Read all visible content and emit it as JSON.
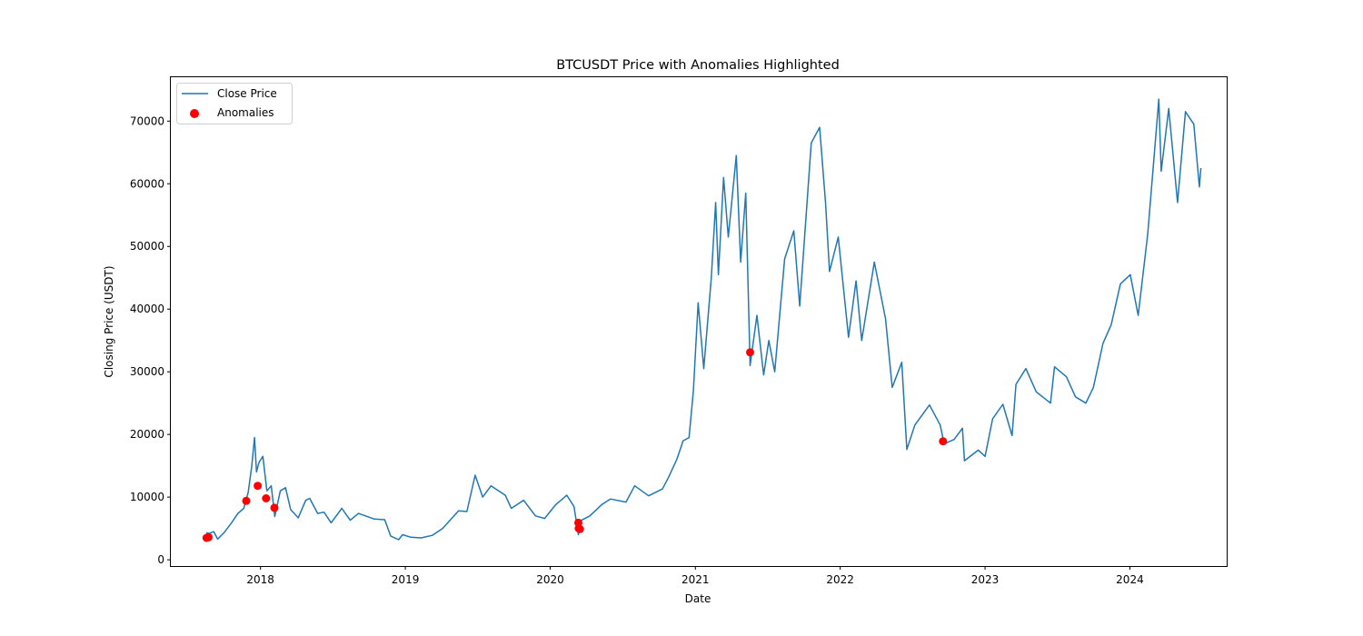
{
  "chart_data": {
    "type": "line",
    "title": "BTCUSDT Price with Anomalies Highlighted",
    "xlabel": "Date",
    "ylabel": "Closing Price (USDT)",
    "xlim": [
      "2017-05-20",
      "2024-09-01"
    ],
    "ylim": [
      -1000,
      77000
    ],
    "x_ticks": [
      "2018",
      "2019",
      "2020",
      "2021",
      "2022",
      "2023",
      "2024"
    ],
    "x_tick_dates": [
      "2018-01-01",
      "2019-01-01",
      "2020-01-01",
      "2021-01-01",
      "2022-01-01",
      "2023-01-01",
      "2024-01-01"
    ],
    "y_ticks": [
      0,
      10000,
      20000,
      30000,
      40000,
      50000,
      60000,
      70000
    ],
    "y_tick_labels": [
      "0",
      "10000",
      "20000",
      "30000",
      "40000",
      "50000",
      "60000",
      "70000"
    ],
    "grid": false,
    "legend_position": "top-left",
    "series": [
      {
        "name": "Close Price",
        "color": "#1f77b4",
        "points": [
          [
            "2017-08-17",
            4300
          ],
          [
            "2017-08-25",
            4200
          ],
          [
            "2017-09-05",
            4500
          ],
          [
            "2017-09-15",
            3300
          ],
          [
            "2017-10-01",
            4300
          ],
          [
            "2017-10-20",
            5900
          ],
          [
            "2017-11-05",
            7400
          ],
          [
            "2017-11-20",
            8200
          ],
          [
            "2017-12-01",
            10800
          ],
          [
            "2017-12-10",
            15000
          ],
          [
            "2017-12-17",
            19500
          ],
          [
            "2017-12-22",
            14000
          ],
          [
            "2017-12-28",
            15500
          ],
          [
            "2018-01-07",
            16500
          ],
          [
            "2018-01-17",
            11000
          ],
          [
            "2018-01-28",
            11800
          ],
          [
            "2018-02-06",
            6900
          ],
          [
            "2018-02-20",
            11000
          ],
          [
            "2018-03-05",
            11500
          ],
          [
            "2018-03-18",
            8000
          ],
          [
            "2018-04-06",
            6700
          ],
          [
            "2018-04-25",
            9500
          ],
          [
            "2018-05-05",
            9800
          ],
          [
            "2018-05-25",
            7400
          ],
          [
            "2018-06-10",
            7600
          ],
          [
            "2018-06-28",
            5900
          ],
          [
            "2018-07-25",
            8200
          ],
          [
            "2018-08-15",
            6300
          ],
          [
            "2018-09-05",
            7400
          ],
          [
            "2018-10-15",
            6500
          ],
          [
            "2018-11-10",
            6400
          ],
          [
            "2018-11-25",
            3800
          ],
          [
            "2018-12-15",
            3200
          ],
          [
            "2018-12-25",
            4000
          ],
          [
            "2019-01-15",
            3600
          ],
          [
            "2019-02-10",
            3500
          ],
          [
            "2019-03-10",
            3900
          ],
          [
            "2019-04-05",
            5000
          ],
          [
            "2019-05-15",
            7800
          ],
          [
            "2019-06-05",
            7700
          ],
          [
            "2019-06-26",
            13500
          ],
          [
            "2019-07-15",
            10000
          ],
          [
            "2019-08-05",
            11800
          ],
          [
            "2019-09-10",
            10300
          ],
          [
            "2019-09-25",
            8200
          ],
          [
            "2019-10-26",
            9500
          ],
          [
            "2019-11-25",
            7000
          ],
          [
            "2019-12-18",
            6600
          ],
          [
            "2020-01-15",
            8800
          ],
          [
            "2020-02-12",
            10300
          ],
          [
            "2020-03-01",
            8500
          ],
          [
            "2020-03-12",
            4000
          ],
          [
            "2020-03-20",
            6300
          ],
          [
            "2020-04-10",
            7000
          ],
          [
            "2020-05-10",
            8800
          ],
          [
            "2020-06-01",
            9700
          ],
          [
            "2020-07-10",
            9200
          ],
          [
            "2020-08-01",
            11800
          ],
          [
            "2020-09-05",
            10200
          ],
          [
            "2020-10-10",
            11300
          ],
          [
            "2020-10-25",
            13100
          ],
          [
            "2020-11-15",
            16000
          ],
          [
            "2020-12-01",
            19000
          ],
          [
            "2020-12-16",
            19500
          ],
          [
            "2020-12-27",
            27000
          ],
          [
            "2021-01-08",
            41000
          ],
          [
            "2021-01-22",
            30500
          ],
          [
            "2021-02-10",
            45000
          ],
          [
            "2021-02-21",
            57000
          ],
          [
            "2021-02-28",
            45500
          ],
          [
            "2021-03-13",
            61000
          ],
          [
            "2021-03-25",
            51500
          ],
          [
            "2021-04-14",
            64500
          ],
          [
            "2021-04-25",
            47500
          ],
          [
            "2021-05-08",
            58500
          ],
          [
            "2021-05-19",
            31000
          ],
          [
            "2021-06-05",
            39000
          ],
          [
            "2021-06-22",
            29500
          ],
          [
            "2021-07-05",
            35000
          ],
          [
            "2021-07-20",
            30000
          ],
          [
            "2021-08-14",
            48000
          ],
          [
            "2021-09-06",
            52500
          ],
          [
            "2021-09-21",
            40500
          ],
          [
            "2021-10-20",
            66500
          ],
          [
            "2021-11-10",
            69000
          ],
          [
            "2021-11-25",
            57000
          ],
          [
            "2021-12-05",
            46000
          ],
          [
            "2021-12-27",
            51500
          ],
          [
            "2022-01-22",
            35500
          ],
          [
            "2022-02-10",
            44500
          ],
          [
            "2022-02-24",
            35000
          ],
          [
            "2022-03-28",
            47500
          ],
          [
            "2022-04-25",
            38500
          ],
          [
            "2022-05-12",
            27500
          ],
          [
            "2022-06-05",
            31500
          ],
          [
            "2022-06-18",
            17600
          ],
          [
            "2022-07-08",
            21500
          ],
          [
            "2022-08-14",
            24700
          ],
          [
            "2022-09-10",
            21500
          ],
          [
            "2022-09-20",
            18500
          ],
          [
            "2022-10-15",
            19200
          ],
          [
            "2022-11-05",
            21000
          ],
          [
            "2022-11-10",
            15800
          ],
          [
            "2022-12-15",
            17500
          ],
          [
            "2023-01-01",
            16500
          ],
          [
            "2023-01-20",
            22500
          ],
          [
            "2023-02-15",
            24800
          ],
          [
            "2023-03-10",
            19800
          ],
          [
            "2023-03-20",
            28000
          ],
          [
            "2023-04-14",
            30500
          ],
          [
            "2023-05-10",
            26800
          ],
          [
            "2023-06-15",
            25000
          ],
          [
            "2023-06-25",
            30800
          ],
          [
            "2023-07-25",
            29200
          ],
          [
            "2023-08-17",
            26000
          ],
          [
            "2023-09-12",
            25000
          ],
          [
            "2023-10-01",
            27500
          ],
          [
            "2023-10-25",
            34500
          ],
          [
            "2023-11-15",
            37500
          ],
          [
            "2023-12-08",
            44000
          ],
          [
            "2024-01-02",
            45500
          ],
          [
            "2024-01-22",
            39000
          ],
          [
            "2024-02-15",
            52000
          ],
          [
            "2024-03-14",
            73500
          ],
          [
            "2024-03-20",
            62000
          ],
          [
            "2024-04-08",
            72000
          ],
          [
            "2024-04-30",
            57000
          ],
          [
            "2024-05-20",
            71500
          ],
          [
            "2024-06-10",
            69500
          ],
          [
            "2024-06-24",
            59500
          ],
          [
            "2024-06-28",
            62500
          ]
        ]
      },
      {
        "name": "Anomalies",
        "color": "#ff0000",
        "type": "scatter",
        "points": [
          [
            "2017-08-18",
            3500
          ],
          [
            "2017-08-23",
            3600
          ],
          [
            "2017-11-26",
            9400
          ],
          [
            "2017-12-25",
            11800
          ],
          [
            "2018-01-15",
            9800
          ],
          [
            "2018-02-05",
            8300
          ],
          [
            "2020-03-12",
            5900
          ],
          [
            "2020-03-13",
            5000
          ],
          [
            "2020-03-16",
            4900
          ],
          [
            "2021-05-19",
            33100
          ],
          [
            "2022-09-17",
            18900
          ]
        ]
      }
    ]
  }
}
